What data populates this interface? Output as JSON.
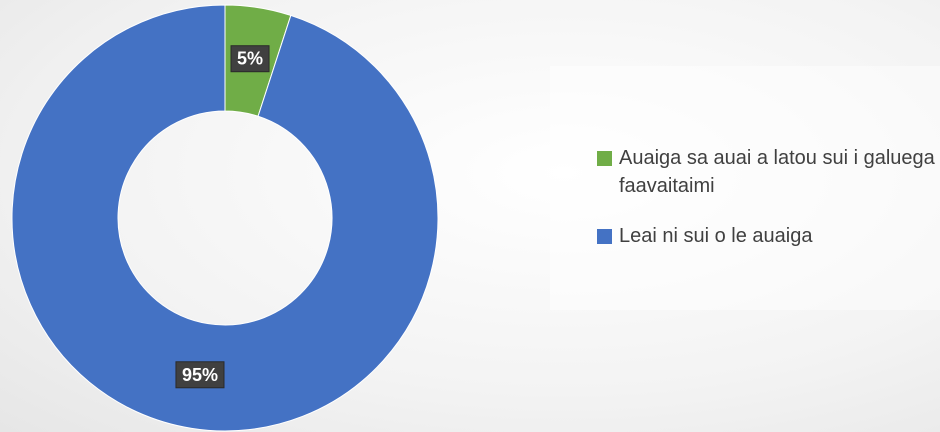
{
  "chart_data": {
    "type": "donut",
    "categories": [
      "Auaiga sa auai a latou sui i galuega faavaitaimi",
      "Leai ni sui o le auaiga"
    ],
    "values": [
      5,
      95
    ],
    "value_labels": [
      "5%",
      "95%"
    ],
    "colors": [
      "#70ad47",
      "#4472c4"
    ],
    "legend": "right"
  }
}
